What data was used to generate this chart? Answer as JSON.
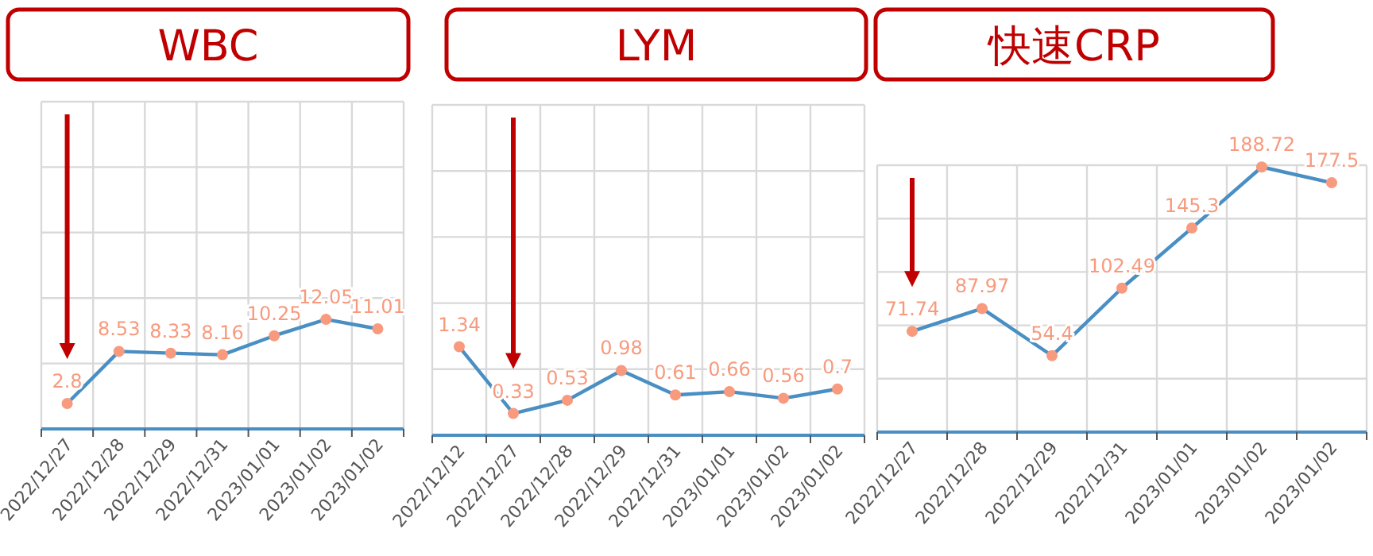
{
  "chart_data": [
    {
      "type": "line",
      "title": "WBC",
      "categories": [
        "2022/12/27",
        "2022/12/28",
        "2022/12/29",
        "2022/12/31",
        "2023/01/01",
        "2023/01/02",
        "2023/01/02"
      ],
      "values": [
        2.8,
        8.53,
        8.33,
        8.16,
        10.25,
        12.05,
        11.01
      ],
      "color": "#4a8fc4",
      "ylim": [
        0,
        36
      ],
      "grid": true,
      "data_labels": true,
      "marker": "circle"
    },
    {
      "type": "line",
      "title": "LYM",
      "categories": [
        "2022/12/12",
        "2022/12/27",
        "2022/12/28",
        "2022/12/29",
        "2022/12/31",
        "2023/01/01",
        "2023/01/02",
        "2023/01/02"
      ],
      "values": [
        1.34,
        0.33,
        0.53,
        0.98,
        0.61,
        0.66,
        0.56,
        0.7
      ],
      "color": "#4a8fc4",
      "ylim": [
        0,
        5
      ],
      "grid": true,
      "data_labels": true,
      "marker": "circle"
    },
    {
      "type": "line",
      "title": "快速CRP",
      "categories": [
        "2022/12/27",
        "2022/12/28",
        "2022/12/29",
        "2022/12/31",
        "2023/01/01",
        "2023/01/02",
        "2023/01/02"
      ],
      "values": [
        71.74,
        87.97,
        54.4,
        102.49,
        145.3,
        188.72,
        177.5
      ],
      "color": "#4a8fc4",
      "ylim": [
        0,
        190
      ],
      "grid": true,
      "data_labels": true,
      "marker": "circle"
    }
  ]
}
